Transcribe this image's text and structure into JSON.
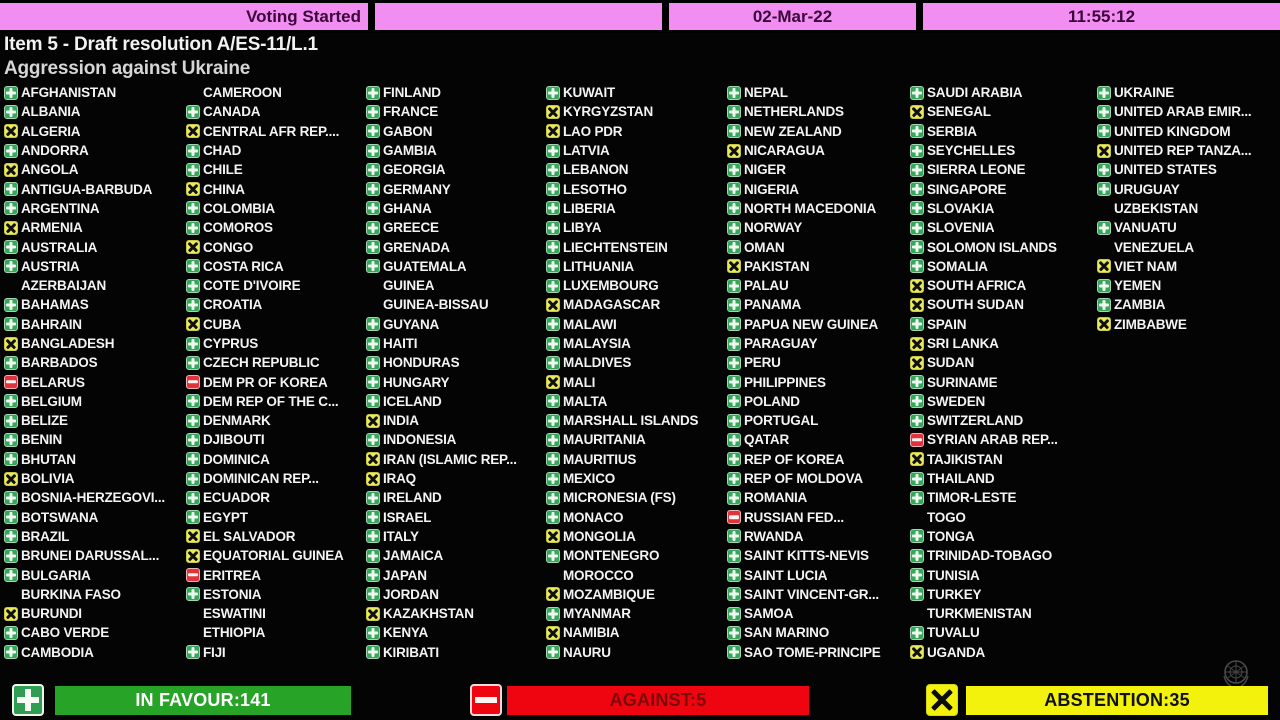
{
  "header": {
    "status": "Voting Started",
    "date": "02-Mar-22",
    "time": "11:55:12"
  },
  "title": {
    "line1": "Item 5 - Draft resolution A/ES-11/L.1",
    "line2": "Aggression against Ukraine"
  },
  "vote_legend": {
    "plus": "in favour",
    "x": "abstention",
    "minus": "against",
    "blank": "not voting"
  },
  "columns": [
    [
      [
        "AFGHANISTAN",
        "+"
      ],
      [
        "ALBANIA",
        "+"
      ],
      [
        "ALGERIA",
        "x"
      ],
      [
        "ANDORRA",
        "+"
      ],
      [
        "ANGOLA",
        "x"
      ],
      [
        "ANTIGUA-BARBUDA",
        "+"
      ],
      [
        "ARGENTINA",
        "+"
      ],
      [
        "ARMENIA",
        "x"
      ],
      [
        "AUSTRALIA",
        "+"
      ],
      [
        "AUSTRIA",
        "+"
      ],
      [
        "AZERBAIJAN",
        ""
      ],
      [
        "BAHAMAS",
        "+"
      ],
      [
        "BAHRAIN",
        "+"
      ],
      [
        "BANGLADESH",
        "x"
      ],
      [
        "BARBADOS",
        "+"
      ],
      [
        "BELARUS",
        "-"
      ],
      [
        "BELGIUM",
        "+"
      ],
      [
        "BELIZE",
        "+"
      ],
      [
        "BENIN",
        "+"
      ],
      [
        "BHUTAN",
        "+"
      ],
      [
        "BOLIVIA",
        "x"
      ],
      [
        "BOSNIA-HERZEGOVI...",
        "+"
      ],
      [
        "BOTSWANA",
        "+"
      ],
      [
        "BRAZIL",
        "+"
      ],
      [
        "BRUNEI DARUSSAL...",
        "+"
      ],
      [
        "BULGARIA",
        "+"
      ],
      [
        "BURKINA FASO",
        ""
      ],
      [
        "BURUNDI",
        "x"
      ],
      [
        "CABO VERDE",
        "+"
      ],
      [
        "CAMBODIA",
        "+"
      ]
    ],
    [
      [
        "CAMEROON",
        ""
      ],
      [
        "CANADA",
        "+"
      ],
      [
        "CENTRAL AFR REP....",
        "x"
      ],
      [
        "CHAD",
        "+"
      ],
      [
        "CHILE",
        "+"
      ],
      [
        "CHINA",
        "x"
      ],
      [
        "COLOMBIA",
        "+"
      ],
      [
        "COMOROS",
        "+"
      ],
      [
        "CONGO",
        "x"
      ],
      [
        "COSTA RICA",
        "+"
      ],
      [
        "COTE D'IVOIRE",
        "+"
      ],
      [
        "CROATIA",
        "+"
      ],
      [
        "CUBA",
        "x"
      ],
      [
        "CYPRUS",
        "+"
      ],
      [
        "CZECH REPUBLIC",
        "+"
      ],
      [
        "DEM PR OF KOREA",
        "-"
      ],
      [
        "DEM REP OF THE C...",
        "+"
      ],
      [
        "DENMARK",
        "+"
      ],
      [
        "DJIBOUTI",
        "+"
      ],
      [
        "DOMINICA",
        "+"
      ],
      [
        "DOMINICAN REP...",
        "+"
      ],
      [
        "ECUADOR",
        "+"
      ],
      [
        "EGYPT",
        "+"
      ],
      [
        "EL SALVADOR",
        "x"
      ],
      [
        "EQUATORIAL GUINEA",
        "x"
      ],
      [
        "ERITREA",
        "-"
      ],
      [
        "ESTONIA",
        "+"
      ],
      [
        "ESWATINI",
        ""
      ],
      [
        "ETHIOPIA",
        ""
      ],
      [
        "FIJI",
        "+"
      ]
    ],
    [
      [
        "FINLAND",
        "+"
      ],
      [
        "FRANCE",
        "+"
      ],
      [
        "GABON",
        "+"
      ],
      [
        "GAMBIA",
        "+"
      ],
      [
        "GEORGIA",
        "+"
      ],
      [
        "GERMANY",
        "+"
      ],
      [
        "GHANA",
        "+"
      ],
      [
        "GREECE",
        "+"
      ],
      [
        "GRENADA",
        "+"
      ],
      [
        "GUATEMALA",
        "+"
      ],
      [
        "GUINEA",
        ""
      ],
      [
        "GUINEA-BISSAU",
        ""
      ],
      [
        "GUYANA",
        "+"
      ],
      [
        "HAITI",
        "+"
      ],
      [
        "HONDURAS",
        "+"
      ],
      [
        "HUNGARY",
        "+"
      ],
      [
        "ICELAND",
        "+"
      ],
      [
        "INDIA",
        "x"
      ],
      [
        "INDONESIA",
        "+"
      ],
      [
        "IRAN (ISLAMIC REP...",
        "x"
      ],
      [
        "IRAQ",
        "x"
      ],
      [
        "IRELAND",
        "+"
      ],
      [
        "ISRAEL",
        "+"
      ],
      [
        "ITALY",
        "+"
      ],
      [
        "JAMAICA",
        "+"
      ],
      [
        "JAPAN",
        "+"
      ],
      [
        "JORDAN",
        "+"
      ],
      [
        "KAZAKHSTAN",
        "x"
      ],
      [
        "KENYA",
        "+"
      ],
      [
        "KIRIBATI",
        "+"
      ]
    ],
    [
      [
        "KUWAIT",
        "+"
      ],
      [
        "KYRGYZSTAN",
        "x"
      ],
      [
        "LAO PDR",
        "x"
      ],
      [
        "LATVIA",
        "+"
      ],
      [
        "LEBANON",
        "+"
      ],
      [
        "LESOTHO",
        "+"
      ],
      [
        "LIBERIA",
        "+"
      ],
      [
        "LIBYA",
        "+"
      ],
      [
        "LIECHTENSTEIN",
        "+"
      ],
      [
        "LITHUANIA",
        "+"
      ],
      [
        "LUXEMBOURG",
        "+"
      ],
      [
        "MADAGASCAR",
        "x"
      ],
      [
        "MALAWI",
        "+"
      ],
      [
        "MALAYSIA",
        "+"
      ],
      [
        "MALDIVES",
        "+"
      ],
      [
        "MALI",
        "x"
      ],
      [
        "MALTA",
        "+"
      ],
      [
        "MARSHALL ISLANDS",
        "+"
      ],
      [
        "MAURITANIA",
        "+"
      ],
      [
        "MAURITIUS",
        "+"
      ],
      [
        "MEXICO",
        "+"
      ],
      [
        "MICRONESIA (FS)",
        "+"
      ],
      [
        "MONACO",
        "+"
      ],
      [
        "MONGOLIA",
        "x"
      ],
      [
        "MONTENEGRO",
        "+"
      ],
      [
        "MOROCCO",
        ""
      ],
      [
        "MOZAMBIQUE",
        "x"
      ],
      [
        "MYANMAR",
        "+"
      ],
      [
        "NAMIBIA",
        "x"
      ],
      [
        "NAURU",
        "+"
      ]
    ],
    [
      [
        "NEPAL",
        "+"
      ],
      [
        "NETHERLANDS",
        "+"
      ],
      [
        "NEW ZEALAND",
        "+"
      ],
      [
        "NICARAGUA",
        "x"
      ],
      [
        "NIGER",
        "+"
      ],
      [
        "NIGERIA",
        "+"
      ],
      [
        "NORTH MACEDONIA",
        "+"
      ],
      [
        "NORWAY",
        "+"
      ],
      [
        "OMAN",
        "+"
      ],
      [
        "PAKISTAN",
        "x"
      ],
      [
        "PALAU",
        "+"
      ],
      [
        "PANAMA",
        "+"
      ],
      [
        "PAPUA NEW GUINEA",
        "+"
      ],
      [
        "PARAGUAY",
        "+"
      ],
      [
        "PERU",
        "+"
      ],
      [
        "PHILIPPINES",
        "+"
      ],
      [
        "POLAND",
        "+"
      ],
      [
        "PORTUGAL",
        "+"
      ],
      [
        "QATAR",
        "+"
      ],
      [
        "REP OF KOREA",
        "+"
      ],
      [
        "REP OF MOLDOVA",
        "+"
      ],
      [
        "ROMANIA",
        "+"
      ],
      [
        "RUSSIAN FED...",
        "-"
      ],
      [
        "RWANDA",
        "+"
      ],
      [
        "SAINT KITTS-NEVIS",
        "+"
      ],
      [
        "SAINT LUCIA",
        "+"
      ],
      [
        "SAINT VINCENT-GR...",
        "+"
      ],
      [
        "SAMOA",
        "+"
      ],
      [
        "SAN MARINO",
        "+"
      ],
      [
        "SAO TOME-PRINCIPE",
        "+"
      ]
    ],
    [
      [
        "SAUDI ARABIA",
        "+"
      ],
      [
        "SENEGAL",
        "x"
      ],
      [
        "SERBIA",
        "+"
      ],
      [
        "SEYCHELLES",
        "+"
      ],
      [
        "SIERRA LEONE",
        "+"
      ],
      [
        "SINGAPORE",
        "+"
      ],
      [
        "SLOVAKIA",
        "+"
      ],
      [
        "SLOVENIA",
        "+"
      ],
      [
        "SOLOMON ISLANDS",
        "+"
      ],
      [
        "SOMALIA",
        "+"
      ],
      [
        "SOUTH AFRICA",
        "x"
      ],
      [
        "SOUTH SUDAN",
        "x"
      ],
      [
        "SPAIN",
        "+"
      ],
      [
        "SRI LANKA",
        "x"
      ],
      [
        "SUDAN",
        "x"
      ],
      [
        "SURINAME",
        "+"
      ],
      [
        "SWEDEN",
        "+"
      ],
      [
        "SWITZERLAND",
        "+"
      ],
      [
        "SYRIAN ARAB REP...",
        "-"
      ],
      [
        "TAJIKISTAN",
        "x"
      ],
      [
        "THAILAND",
        "+"
      ],
      [
        "TIMOR-LESTE",
        "+"
      ],
      [
        "TOGO",
        ""
      ],
      [
        "TONGA",
        "+"
      ],
      [
        "TRINIDAD-TOBAGO",
        "+"
      ],
      [
        "TUNISIA",
        "+"
      ],
      [
        "TURKEY",
        "+"
      ],
      [
        "TURKMENISTAN",
        ""
      ],
      [
        "TUVALU",
        "+"
      ],
      [
        "UGANDA",
        "x"
      ]
    ],
    [
      [
        "UKRAINE",
        "+"
      ],
      [
        "UNITED ARAB EMIR...",
        "+"
      ],
      [
        "UNITED KINGDOM",
        "+"
      ],
      [
        "UNITED REP TANZA...",
        "x"
      ],
      [
        "UNITED STATES",
        "+"
      ],
      [
        "URUGUAY",
        "+"
      ],
      [
        "UZBEKISTAN",
        ""
      ],
      [
        "VANUATU",
        "+"
      ],
      [
        "VENEZUELA",
        ""
      ],
      [
        "VIET NAM",
        "x"
      ],
      [
        "YEMEN",
        "+"
      ],
      [
        "ZAMBIA",
        "+"
      ],
      [
        "ZIMBABWE",
        "x"
      ]
    ]
  ],
  "summary": {
    "in_favour": {
      "label": "IN FAVOUR:141",
      "count": 141
    },
    "against": {
      "label": "AGAINST:5",
      "count": 5
    },
    "abstention": {
      "label": "ABSTENTION:35",
      "count": 35
    }
  },
  "colors": {
    "pink": "#f28df2",
    "green": "#37a65a",
    "yellow": "#e9e95c",
    "red": "#e0343a",
    "bargreen": "#27a427",
    "barred": "#ee0510",
    "baryellow": "#f2f20c"
  }
}
